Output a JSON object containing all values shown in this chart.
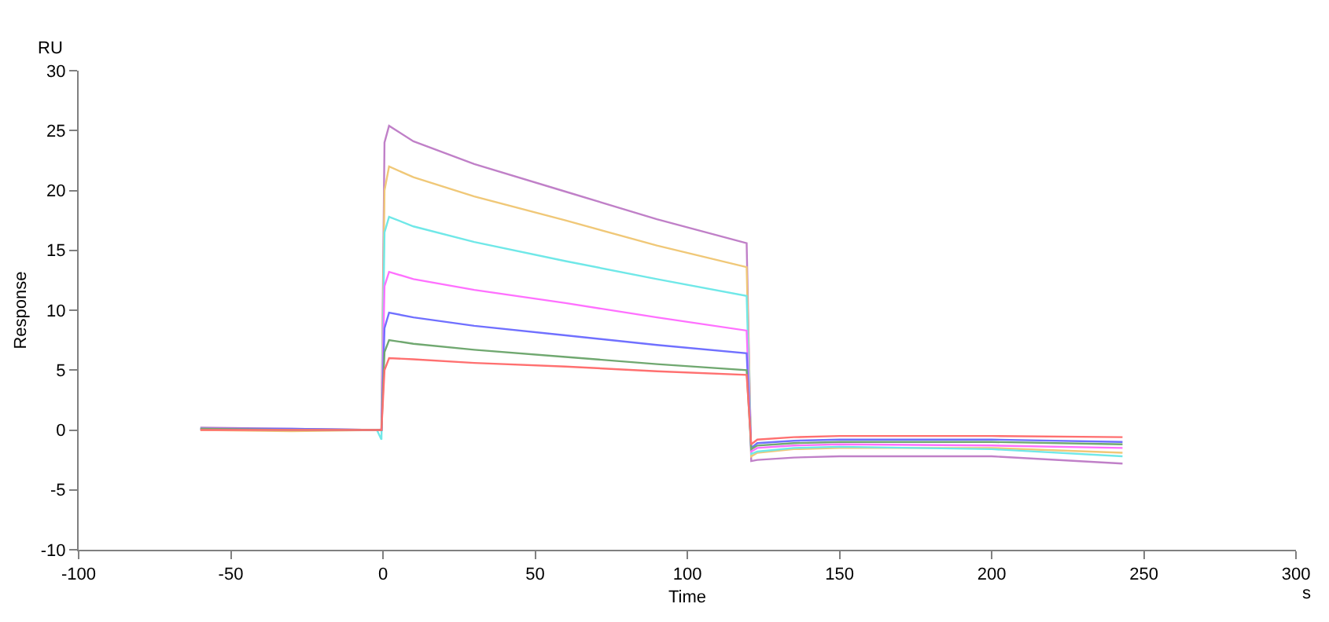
{
  "chart_data": {
    "type": "line",
    "xlabel": "Time",
    "ylabel": "Response",
    "annotations": [
      "RU",
      "s"
    ],
    "x": [
      -60,
      -30,
      -2,
      -0.5,
      0.5,
      2,
      10,
      30,
      60,
      90,
      119.5,
      121,
      123,
      135,
      150,
      200,
      243
    ],
    "series": [
      {
        "color": "#c080c8",
        "values": [
          0.2,
          0.1,
          0,
          0,
          24,
          25.4,
          24.1,
          22.2,
          19.9,
          17.6,
          15.6,
          -2.6,
          -2.5,
          -2.3,
          -2.2,
          -2.2,
          -2.8
        ]
      },
      {
        "color": "#f0c878",
        "values": [
          0,
          -0.1,
          0,
          0,
          20,
          22,
          21.1,
          19.5,
          17.5,
          15.4,
          13.6,
          -2.2,
          -1.9,
          -1.6,
          -1.5,
          -1.5,
          -1.9
        ]
      },
      {
        "color": "#70e8e8",
        "values": [
          0.1,
          0,
          0,
          -0.8,
          16.5,
          17.8,
          17,
          15.7,
          14.1,
          12.6,
          11.2,
          -2.0,
          -1.8,
          -1.5,
          -1.4,
          -1.6,
          -2.2
        ]
      },
      {
        "color": "#ff70ff",
        "values": [
          null,
          null,
          0,
          0,
          12,
          13.2,
          12.6,
          11.7,
          10.6,
          9.4,
          8.3,
          -1.8,
          -1.5,
          -1.3,
          -1.2,
          -1.3,
          -1.5
        ]
      },
      {
        "color": "#7070ff",
        "values": [
          0.1,
          0.1,
          0,
          0,
          8.5,
          9.8,
          9.4,
          8.7,
          7.9,
          7.1,
          6.4,
          -1.5,
          -1.1,
          -0.9,
          -0.8,
          -0.8,
          -1.0
        ]
      },
      {
        "color": "#70a870",
        "values": [
          0.1,
          0,
          0,
          0,
          6.5,
          7.5,
          7.2,
          6.7,
          6.1,
          5.5,
          5.0,
          -1.6,
          -1.3,
          -1.1,
          -1.0,
          -1.0,
          -1.2
        ]
      },
      {
        "color": "#ff7070",
        "values": [
          0,
          0,
          0,
          0,
          5,
          6.0,
          5.9,
          5.6,
          5.3,
          4.9,
          4.6,
          -1.2,
          -0.8,
          -0.6,
          -0.5,
          -0.5,
          -0.6
        ]
      }
    ],
    "xlim": [
      -100,
      300
    ],
    "xticks": [
      -100,
      -50,
      0,
      50,
      100,
      150,
      200,
      250,
      300
    ],
    "ylim": [
      -10,
      30
    ],
    "yticks": [
      -10,
      -5,
      0,
      5,
      10,
      15,
      20,
      25,
      30
    ],
    "marker": "none",
    "line_style": "solid"
  }
}
